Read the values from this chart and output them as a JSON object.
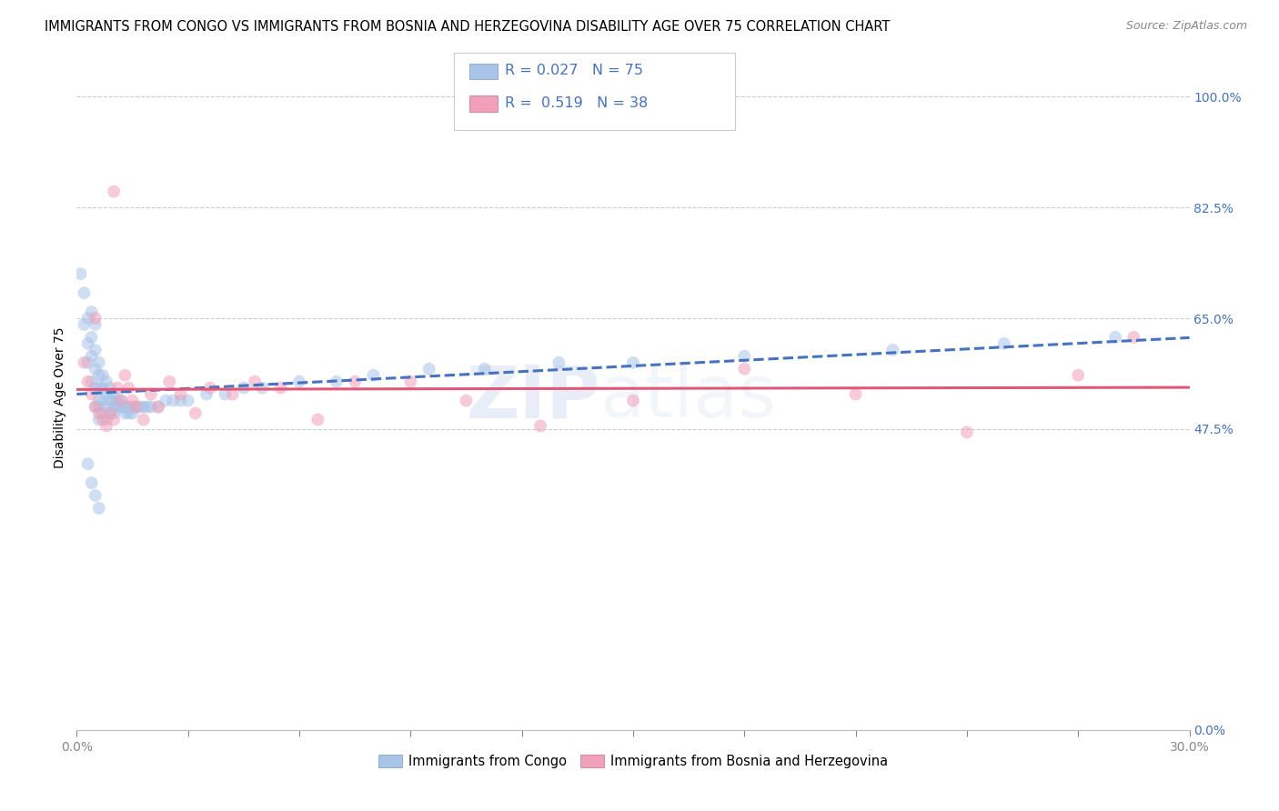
{
  "title": "IMMIGRANTS FROM CONGO VS IMMIGRANTS FROM BOSNIA AND HERZEGOVINA DISABILITY AGE OVER 75 CORRELATION CHART",
  "source": "Source: ZipAtlas.com",
  "ylabel": "Disability Age Over 75",
  "xlim": [
    0.0,
    0.3
  ],
  "ylim": [
    0.0,
    1.05
  ],
  "xtick_labels": [
    "0.0%",
    "",
    "",
    "",
    "",
    "",
    "",
    "",
    "",
    "",
    "30.0%"
  ],
  "xtick_values": [
    0.0,
    0.03,
    0.06,
    0.09,
    0.12,
    0.15,
    0.18,
    0.21,
    0.24,
    0.27,
    0.3
  ],
  "ytick_labels": [
    "100.0%",
    "82.5%",
    "65.0%",
    "47.5%",
    "0.0%"
  ],
  "ytick_values": [
    1.0,
    0.825,
    0.65,
    0.475,
    0.0
  ],
  "legend_label_1": "Immigrants from Congo",
  "legend_label_2": "Immigrants from Bosnia and Herzegovina",
  "r_congo": 0.027,
  "n_congo": 75,
  "r_bosnia": 0.519,
  "n_bosnia": 38,
  "congo_scatter_color": "#a8c4e8",
  "bosnia_scatter_color": "#f0a0b8",
  "trendline_blue": "#4472c4",
  "trendline_pink": "#e05878",
  "background_color": "#ffffff",
  "watermark_zip": "ZIP",
  "watermark_atlas": "atlas",
  "grid_color": "#cccccc",
  "title_fontsize": 10.5,
  "axis_label_fontsize": 10,
  "tick_fontsize": 10,
  "right_tick_color": "#4472c4",
  "scatter_alpha": 0.55,
  "scatter_size": 100,
  "congo_points_x": [
    0.001,
    0.002,
    0.002,
    0.003,
    0.003,
    0.003,
    0.004,
    0.004,
    0.004,
    0.004,
    0.005,
    0.005,
    0.005,
    0.005,
    0.005,
    0.006,
    0.006,
    0.006,
    0.006,
    0.006,
    0.006,
    0.007,
    0.007,
    0.007,
    0.007,
    0.008,
    0.008,
    0.008,
    0.008,
    0.009,
    0.009,
    0.009,
    0.01,
    0.01,
    0.01,
    0.01,
    0.011,
    0.011,
    0.012,
    0.012,
    0.013,
    0.013,
    0.014,
    0.014,
    0.015,
    0.015,
    0.016,
    0.017,
    0.018,
    0.019,
    0.02,
    0.022,
    0.024,
    0.026,
    0.028,
    0.03,
    0.035,
    0.04,
    0.045,
    0.05,
    0.06,
    0.07,
    0.08,
    0.095,
    0.11,
    0.13,
    0.15,
    0.18,
    0.22,
    0.25,
    0.28,
    0.003,
    0.004,
    0.005,
    0.006
  ],
  "congo_points_y": [
    0.72,
    0.69,
    0.64,
    0.65,
    0.61,
    0.58,
    0.66,
    0.62,
    0.59,
    0.55,
    0.64,
    0.6,
    0.57,
    0.54,
    0.51,
    0.58,
    0.56,
    0.54,
    0.52,
    0.51,
    0.49,
    0.56,
    0.54,
    0.52,
    0.5,
    0.55,
    0.53,
    0.51,
    0.49,
    0.54,
    0.52,
    0.5,
    0.53,
    0.52,
    0.51,
    0.5,
    0.52,
    0.51,
    0.52,
    0.51,
    0.51,
    0.5,
    0.51,
    0.5,
    0.51,
    0.5,
    0.51,
    0.51,
    0.51,
    0.51,
    0.51,
    0.51,
    0.52,
    0.52,
    0.52,
    0.52,
    0.53,
    0.53,
    0.54,
    0.54,
    0.55,
    0.55,
    0.56,
    0.57,
    0.57,
    0.58,
    0.58,
    0.59,
    0.6,
    0.61,
    0.62,
    0.42,
    0.39,
    0.37,
    0.35
  ],
  "bosnia_points_x": [
    0.002,
    0.003,
    0.004,
    0.005,
    0.005,
    0.006,
    0.007,
    0.008,
    0.009,
    0.01,
    0.011,
    0.012,
    0.013,
    0.014,
    0.015,
    0.016,
    0.018,
    0.02,
    0.022,
    0.025,
    0.028,
    0.032,
    0.036,
    0.042,
    0.048,
    0.055,
    0.065,
    0.075,
    0.09,
    0.105,
    0.125,
    0.15,
    0.18,
    0.21,
    0.24,
    0.27,
    0.285,
    0.01
  ],
  "bosnia_points_y": [
    0.58,
    0.55,
    0.53,
    0.51,
    0.65,
    0.5,
    0.49,
    0.48,
    0.5,
    0.49,
    0.54,
    0.52,
    0.56,
    0.54,
    0.52,
    0.51,
    0.49,
    0.53,
    0.51,
    0.55,
    0.53,
    0.5,
    0.54,
    0.53,
    0.55,
    0.54,
    0.49,
    0.55,
    0.55,
    0.52,
    0.48,
    0.52,
    0.57,
    0.53,
    0.47,
    0.56,
    0.62,
    0.85
  ]
}
